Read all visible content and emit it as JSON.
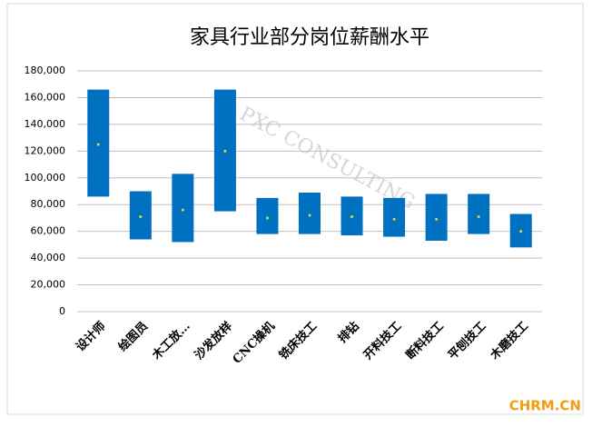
{
  "chart_data": {
    "type": "floating_bar",
    "title": "家具行业部分岗位薪酬水平",
    "categories": [
      "设计师",
      "绘图员",
      "木工放…",
      "沙发放样",
      "CNC操机",
      "铣床技工",
      "排钻",
      "开料技工",
      "断料技工",
      "平刨技工",
      "木磨技工"
    ],
    "low": [
      86000,
      54000,
      52000,
      75000,
      58000,
      58000,
      57000,
      56000,
      53000,
      58000,
      48000
    ],
    "high": [
      166000,
      90000,
      103000,
      166000,
      85000,
      89000,
      86000,
      85000,
      88000,
      88000,
      73000
    ],
    "mid": [
      125000,
      71000,
      76000,
      120000,
      70000,
      72000,
      71000,
      69000,
      69000,
      71000,
      60000
    ],
    "color": "#0070c0",
    "mid_color": "#c8e04a",
    "ylim": [
      0,
      180000
    ],
    "yticks": [
      0,
      {
        "value": 20000,
        "label": "20,000"
      },
      {
        "value": 40000,
        "label": "40,000"
      },
      {
        "value": 60000,
        "label": "60,000"
      },
      {
        "value": 80000,
        "label": "80,000"
      },
      {
        "value": 100000,
        "label": "100,000"
      },
      {
        "value": 120000,
        "label": "120,000"
      },
      {
        "value": 140000,
        "label": "140,000"
      },
      {
        "value": 160000,
        "label": "160,000"
      },
      {
        "value": 180000,
        "label": "180,000"
      }
    ],
    "grid": true,
    "watermark": "PXC CONSULTING",
    "source": "CHRM.CN"
  }
}
